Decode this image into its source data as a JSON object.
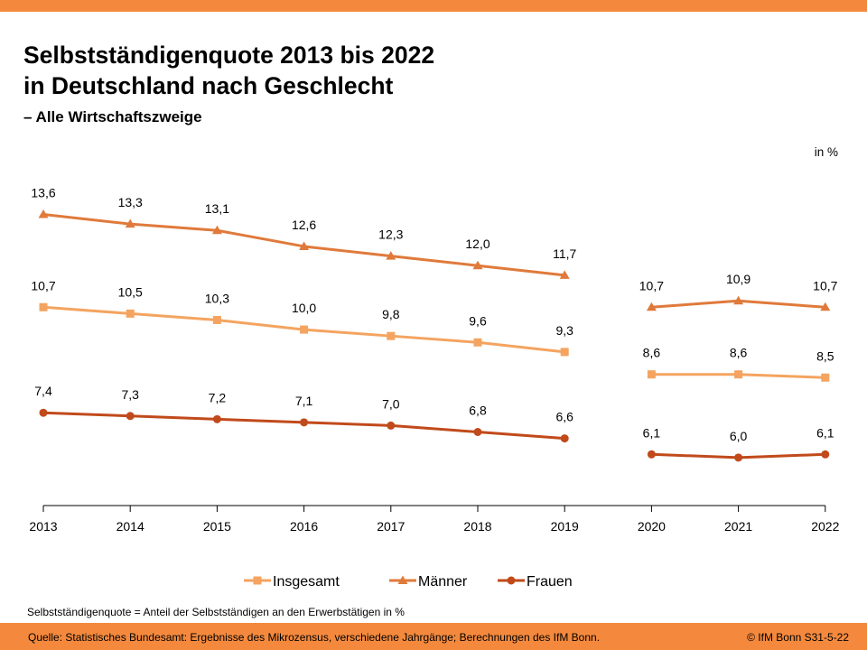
{
  "slide": {
    "title_line1": "Selbstständigenquote 2013 bis 2022",
    "title_line2": "in Deutschland nach Geschlecht",
    "subtitle": "– Alle Wirtschaftszweige",
    "unit": "in %",
    "definition": "Selbstständigenquote  = Anteil der Selbstständigen an den Erwerbstätigen in %",
    "source": "Quelle:  Statistisches Bundesamt: Ergebnisse des Mikrozensus,  verschiedene  Jahrgänge;  Berechnungen  des IfM Bonn.",
    "copyright": "© IfM  Bonn   S31-5-22"
  },
  "chart_data": {
    "type": "line",
    "title": "Selbstständigenquote 2013 bis 2022 in Deutschland nach Geschlecht",
    "categories": [
      "2013",
      "2014",
      "2015",
      "2016",
      "2017",
      "2018",
      "2019",
      "2020",
      "2021",
      "2022"
    ],
    "segments": [
      [
        0,
        6
      ],
      [
        7,
        9
      ]
    ],
    "ylim": [
      4.5,
      14.8
    ],
    "ylabel": "in %",
    "legend_position": "bottom-center",
    "series": [
      {
        "name": "Insgesamt",
        "color": "#F4A460",
        "marker": "square",
        "values": [
          10.7,
          10.5,
          10.3,
          10.0,
          9.8,
          9.6,
          9.3,
          8.6,
          8.6,
          8.5
        ],
        "labels": [
          "10,7",
          "10,5",
          "10,3",
          "10,0",
          "9,8",
          "9,6",
          "9,3",
          "8,6",
          "8,6",
          "8,5"
        ]
      },
      {
        "name": "Männer",
        "color": "#E07A3B",
        "marker": "triangle",
        "values": [
          13.6,
          13.3,
          13.1,
          12.6,
          12.3,
          12.0,
          11.7,
          10.7,
          10.9,
          10.7
        ],
        "labels": [
          "13,6",
          "13,3",
          "13,1",
          "12,6",
          "12,3",
          "12,0",
          "11,7",
          "10,7",
          "10,9",
          "10,7"
        ]
      },
      {
        "name": "Frauen",
        "color": "#C14A1B",
        "marker": "circle",
        "values": [
          7.4,
          7.3,
          7.2,
          7.1,
          7.0,
          6.8,
          6.6,
          6.1,
          6.0,
          6.1
        ],
        "labels": [
          "7,4",
          "7,3",
          "7,2",
          "7,1",
          "7,0",
          "6,8",
          "6,6",
          "6,1",
          "6,0",
          "6,1"
        ]
      }
    ]
  }
}
